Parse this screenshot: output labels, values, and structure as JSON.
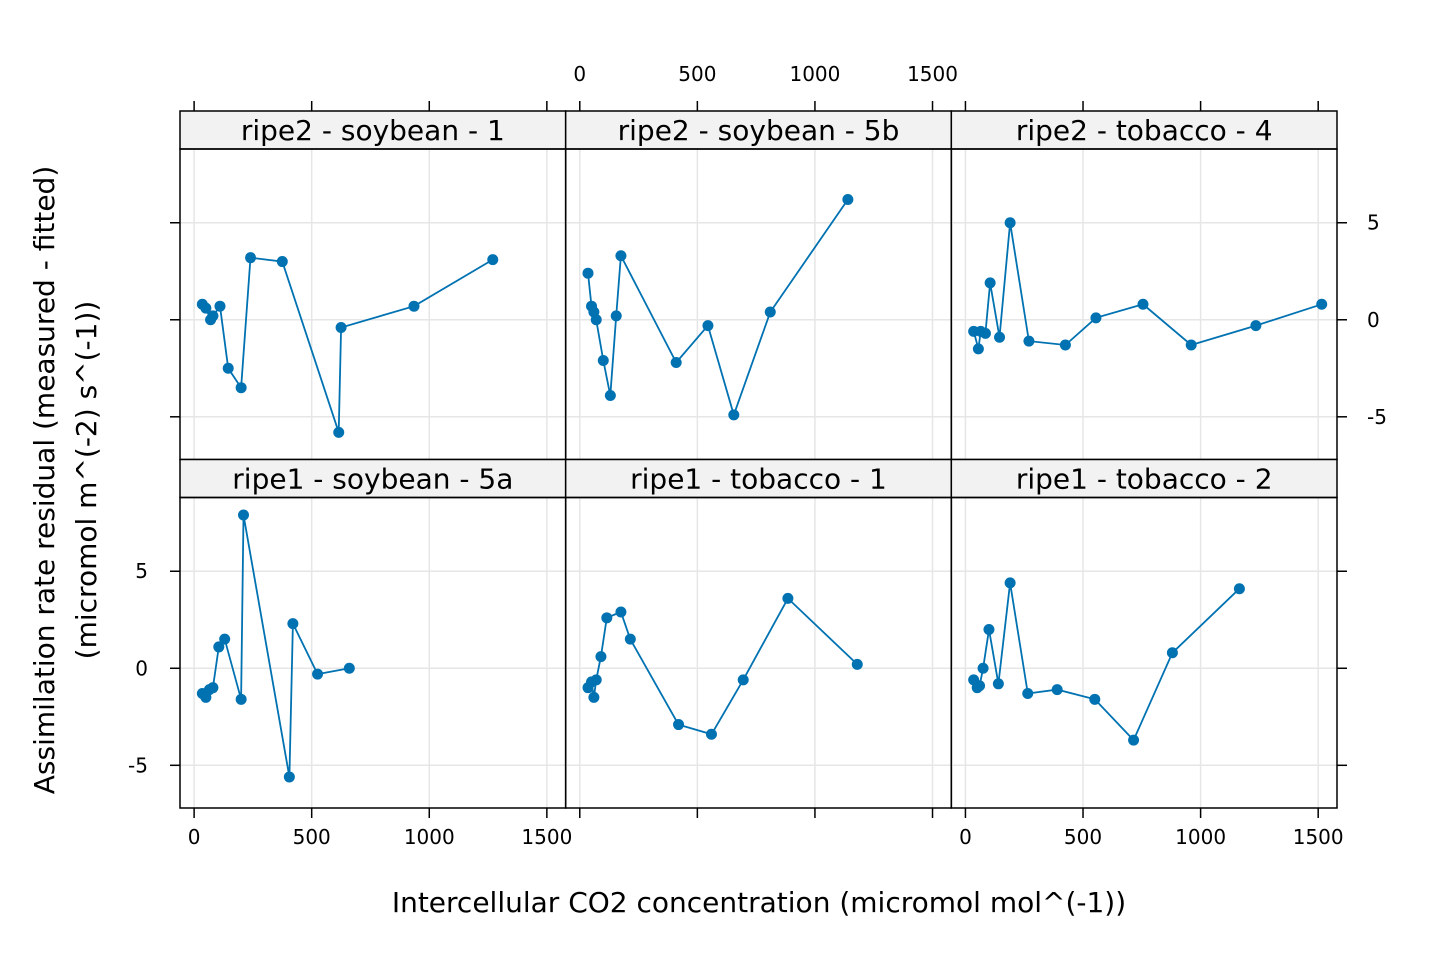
{
  "chart_data": {
    "type": "line",
    "xlabel": "Intercellular CO2 concentration (micromol mol^(-1))",
    "ylabel_line1": "Assimilation rate residual (measured - fitted)",
    "ylabel_line2": "(micromol m^(-2) s^(-1))",
    "xlim": [
      -60,
      1580
    ],
    "ylim": [
      -7.2,
      8.8
    ],
    "x_ticks": [
      0,
      500,
      1000,
      1500
    ],
    "y_ticks": [
      -5,
      0,
      5
    ],
    "grid": true,
    "colors": {
      "series": "#0072B2",
      "strip_bg": "#f2f2f2",
      "grid": "#e6e6e6",
      "frame": "#000000"
    },
    "panels": [
      {
        "label": "ripe2 - soybean - 1",
        "x": [
          35,
          50,
          70,
          80,
          110,
          145,
          200,
          240,
          375,
          615,
          625,
          935,
          1270
        ],
        "y": [
          0.8,
          0.6,
          0.0,
          0.2,
          0.7,
          -2.5,
          -3.5,
          3.2,
          3.0,
          -5.8,
          -0.4,
          0.7,
          3.1
        ]
      },
      {
        "label": "ripe2 - soybean - 5b",
        "x": [
          35,
          50,
          60,
          70,
          100,
          130,
          155,
          175,
          410,
          545,
          655,
          810,
          1140
        ],
        "y": [
          2.4,
          0.7,
          0.4,
          0.0,
          -2.1,
          -3.9,
          0.2,
          3.3,
          -2.2,
          -0.3,
          -4.9,
          0.4,
          6.2
        ]
      },
      {
        "label": "ripe2 - tobacco - 4",
        "x": [
          35,
          55,
          65,
          85,
          105,
          145,
          190,
          270,
          425,
          555,
          755,
          960,
          1235,
          1515
        ],
        "y": [
          -0.6,
          -1.5,
          -0.6,
          -0.7,
          1.9,
          -0.9,
          5.0,
          -1.1,
          -1.3,
          0.1,
          0.8,
          -1.3,
          -0.3,
          0.8
        ]
      },
      {
        "label": "ripe1 - soybean - 5a",
        "x": [
          35,
          50,
          65,
          80,
          105,
          130,
          200,
          210,
          405,
          420,
          525,
          660
        ],
        "y": [
          -1.3,
          -1.5,
          -1.1,
          -1.0,
          1.1,
          1.5,
          -1.6,
          7.9,
          -5.6,
          2.3,
          -0.3,
          0.0
        ],
        "order": [
          0,
          1,
          2,
          3,
          4,
          5,
          6,
          7,
          8,
          9,
          10,
          11
        ]
      },
      {
        "label": "ripe1 - tobacco - 1",
        "x": [
          35,
          50,
          60,
          70,
          90,
          115,
          175,
          215,
          420,
          560,
          695,
          885,
          1180
        ],
        "y": [
          -1.0,
          -0.7,
          -1.5,
          -0.6,
          0.6,
          2.6,
          2.9,
          1.5,
          -2.9,
          -3.4,
          -0.6,
          3.6,
          0.2
        ],
        "order_note": ""
      },
      {
        "label": "ripe1 - tobacco - 2",
        "x": [
          35,
          50,
          60,
          75,
          100,
          140,
          190,
          265,
          390,
          550,
          715,
          880,
          1165
        ],
        "y": [
          -0.6,
          -1.0,
          -0.9,
          0.0,
          2.0,
          -0.8,
          4.4,
          -1.3,
          -1.1,
          -1.6,
          -3.7,
          0.8,
          4.1
        ]
      }
    ]
  }
}
